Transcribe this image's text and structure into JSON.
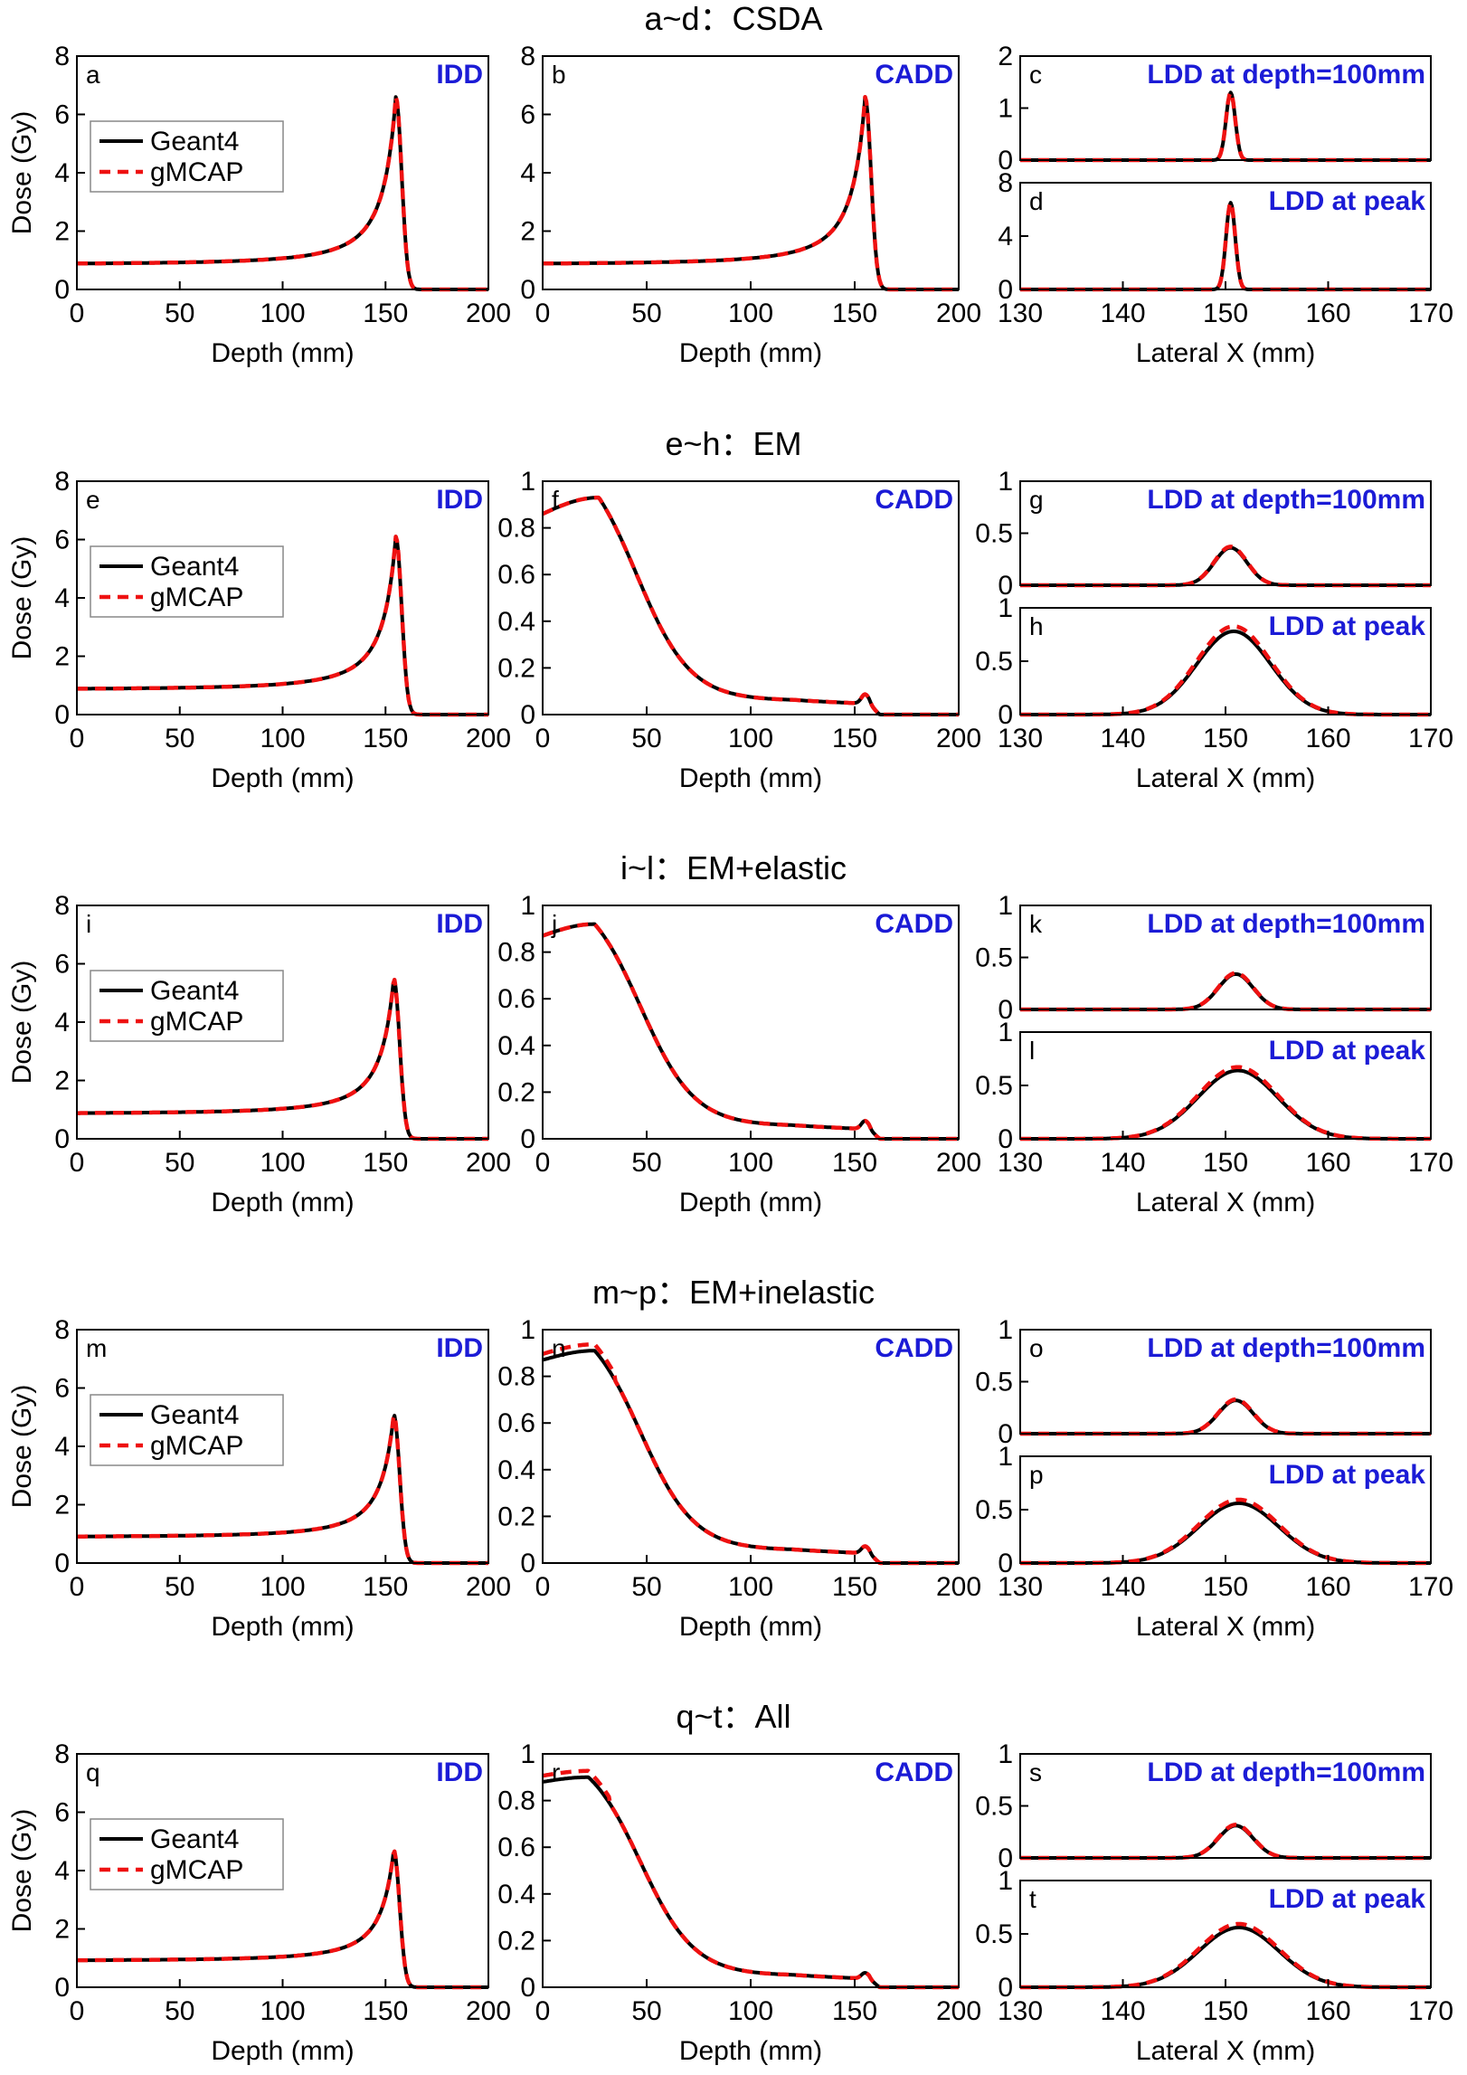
{
  "legend": {
    "geant4": "Geant4",
    "gmcap": "gMCAP"
  },
  "colors": {
    "geant4": "#000000",
    "gmcap": "#ee1111",
    "tag": "#1b1bd6"
  },
  "chart_data": [
    {
      "row_title": "a~d：CSDA",
      "panels": [
        {
          "letter": "a",
          "tag": "IDD",
          "type": "line",
          "kind": "idd",
          "xlabel": "Depth (mm)",
          "ylabel": "Dose (Gy)",
          "xlim": [
            0,
            200
          ],
          "ylim": [
            0,
            8
          ],
          "xticks": [
            0,
            50,
            100,
            150,
            200
          ],
          "yticks": [
            0,
            2,
            4,
            6,
            8
          ],
          "legend": true,
          "peak_depth_mm": 155,
          "peak_dose_gy": 6.6,
          "entrance_dose_gy": 0.85,
          "gmcap_scale": 1.0
        },
        {
          "letter": "b",
          "tag": "CADD",
          "type": "line",
          "kind": "idd",
          "xlabel": "Depth (mm)",
          "ylabel": "",
          "xlim": [
            0,
            200
          ],
          "ylim": [
            0,
            8
          ],
          "xticks": [
            0,
            50,
            100,
            150,
            200
          ],
          "yticks": [
            0,
            2,
            4,
            6,
            8
          ],
          "legend": false,
          "peak_depth_mm": 155,
          "peak_dose_gy": 6.6,
          "entrance_dose_gy": 0.85,
          "gmcap_scale": 1.0
        },
        {
          "letter": "c",
          "tag": "LDD at depth=100mm",
          "type": "line",
          "kind": "ldd",
          "xlabel": "",
          "ylabel": "",
          "xlim": [
            130,
            170
          ],
          "ylim": [
            0,
            2
          ],
          "xticks": [],
          "yticks": [
            0,
            1,
            2
          ],
          "center_mm": 150.5,
          "peak_dose_gy": 1.3,
          "sigma_mm": 0.45,
          "gmcap_scale": 1.0
        },
        {
          "letter": "d",
          "tag": "LDD at peak",
          "type": "line",
          "kind": "ldd",
          "xlabel": "Lateral X (mm)",
          "ylabel": "",
          "xlim": [
            130,
            170
          ],
          "ylim": [
            0,
            8
          ],
          "xticks": [
            130,
            140,
            150,
            160,
            170
          ],
          "yticks": [
            0,
            4,
            8
          ],
          "center_mm": 150.5,
          "peak_dose_gy": 6.5,
          "sigma_mm": 0.45,
          "gmcap_scale": 1.0
        }
      ]
    },
    {
      "row_title": "e~h：EM",
      "panels": [
        {
          "letter": "e",
          "tag": "IDD",
          "type": "line",
          "kind": "idd",
          "xlabel": "Depth (mm)",
          "ylabel": "Dose (Gy)",
          "xlim": [
            0,
            200
          ],
          "ylim": [
            0,
            8
          ],
          "xticks": [
            0,
            50,
            100,
            150,
            200
          ],
          "yticks": [
            0,
            2,
            4,
            6,
            8
          ],
          "legend": true,
          "peak_depth_mm": 155,
          "peak_dose_gy": 6.1,
          "entrance_dose_gy": 0.85,
          "gmcap_scale": 1.0
        },
        {
          "letter": "f",
          "tag": "CADD",
          "type": "line",
          "kind": "cadd",
          "xlabel": "Depth (mm)",
          "ylabel": "",
          "xlim": [
            0,
            200
          ],
          "ylim": [
            0,
            1
          ],
          "xticks": [
            0,
            50,
            100,
            150,
            200
          ],
          "yticks": [
            0,
            0.2,
            0.4,
            0.6,
            0.8,
            1
          ],
          "start_dose": 0.86,
          "max_dose": 0.93,
          "max_depth_mm": 27,
          "half_depth_mm": 45,
          "tail_dose": 0.06,
          "bump_dose": 0.1,
          "gmcap_scale": 1.0
        },
        {
          "letter": "g",
          "tag": "LDD at depth=100mm",
          "type": "line",
          "kind": "ldd",
          "xlabel": "",
          "ylabel": "",
          "xlim": [
            130,
            170
          ],
          "ylim": [
            0,
            1
          ],
          "xticks": [],
          "yticks": [
            0,
            0.5,
            1
          ],
          "center_mm": 150.5,
          "peak_dose_gy": 0.36,
          "sigma_mm": 1.6,
          "gmcap_scale": 1.03
        },
        {
          "letter": "h",
          "tag": "LDD at peak",
          "type": "line",
          "kind": "ldd",
          "xlabel": "Lateral X (mm)",
          "ylabel": "",
          "xlim": [
            130,
            170
          ],
          "ylim": [
            0,
            1
          ],
          "xticks": [
            130,
            140,
            150,
            160,
            170
          ],
          "yticks": [
            0,
            0.5,
            1
          ],
          "center_mm": 150.8,
          "peak_dose_gy": 0.78,
          "sigma_mm": 3.6,
          "gmcap_scale": 1.06
        }
      ]
    },
    {
      "row_title": "i~l：EM+elastic",
      "panels": [
        {
          "letter": "i",
          "tag": "IDD",
          "type": "line",
          "kind": "idd",
          "xlabel": "Depth (mm)",
          "ylabel": "Dose (Gy)",
          "xlim": [
            0,
            200
          ],
          "ylim": [
            0,
            8
          ],
          "xticks": [
            0,
            50,
            100,
            150,
            200
          ],
          "yticks": [
            0,
            2,
            4,
            6,
            8
          ],
          "legend": true,
          "peak_depth_mm": 154,
          "peak_dose_gy": 5.5,
          "entrance_dose_gy": 0.85,
          "gmcap_scale": 1.0
        },
        {
          "letter": "j",
          "tag": "CADD",
          "type": "line",
          "kind": "cadd",
          "xlabel": "Depth (mm)",
          "ylabel": "",
          "xlim": [
            0,
            200
          ],
          "ylim": [
            0,
            1
          ],
          "xticks": [
            0,
            50,
            100,
            150,
            200
          ],
          "yticks": [
            0,
            0.2,
            0.4,
            0.6,
            0.8,
            1
          ],
          "start_dose": 0.87,
          "max_dose": 0.92,
          "max_depth_mm": 25,
          "half_depth_mm": 47,
          "tail_dose": 0.055,
          "bump_dose": 0.09,
          "gmcap_scale": 1.0
        },
        {
          "letter": "k",
          "tag": "LDD at depth=100mm",
          "type": "line",
          "kind": "ldd",
          "xlabel": "",
          "ylabel": "",
          "xlim": [
            130,
            170
          ],
          "ylim": [
            0,
            1
          ],
          "xticks": [],
          "yticks": [
            0,
            0.5,
            1
          ],
          "center_mm": 151,
          "peak_dose_gy": 0.34,
          "sigma_mm": 1.7,
          "gmcap_scale": 1.03
        },
        {
          "letter": "l",
          "tag": "LDD at peak",
          "type": "line",
          "kind": "ldd",
          "xlabel": "Lateral X (mm)",
          "ylabel": "",
          "xlim": [
            130,
            170
          ],
          "ylim": [
            0,
            1
          ],
          "xticks": [
            130,
            140,
            150,
            160,
            170
          ],
          "yticks": [
            0,
            0.5,
            1
          ],
          "center_mm": 151.2,
          "peak_dose_gy": 0.64,
          "sigma_mm": 3.9,
          "gmcap_scale": 1.05
        }
      ]
    },
    {
      "row_title": "m~p：EM+inelastic",
      "panels": [
        {
          "letter": "m",
          "tag": "IDD",
          "type": "line",
          "kind": "idd",
          "xlabel": "Depth (mm)",
          "ylabel": "Dose (Gy)",
          "xlim": [
            0,
            200
          ],
          "ylim": [
            0,
            8
          ],
          "xticks": [
            0,
            50,
            100,
            150,
            200
          ],
          "yticks": [
            0,
            2,
            4,
            6,
            8
          ],
          "legend": true,
          "peak_depth_mm": 154,
          "peak_dose_gy": 5.1,
          "entrance_dose_gy": 0.88,
          "gmcap_scale": 1.0
        },
        {
          "letter": "n",
          "tag": "CADD",
          "type": "line",
          "kind": "cadd",
          "xlabel": "Depth (mm)",
          "ylabel": "",
          "xlim": [
            0,
            200
          ],
          "ylim": [
            0,
            1
          ],
          "xticks": [
            0,
            50,
            100,
            150,
            200
          ],
          "yticks": [
            0,
            0.2,
            0.4,
            0.6,
            0.8,
            1
          ],
          "start_dose": 0.87,
          "max_dose": 0.91,
          "max_depth_mm": 25,
          "half_depth_mm": 47,
          "tail_dose": 0.055,
          "bump_dose": 0.085,
          "gmcap_scale": 1.03
        },
        {
          "letter": "o",
          "tag": "LDD at depth=100mm",
          "type": "line",
          "kind": "ldd",
          "xlabel": "",
          "ylabel": "",
          "xlim": [
            130,
            170
          ],
          "ylim": [
            0,
            1
          ],
          "xticks": [],
          "yticks": [
            0,
            0.5,
            1
          ],
          "center_mm": 151,
          "peak_dose_gy": 0.32,
          "sigma_mm": 1.7,
          "gmcap_scale": 1.03
        },
        {
          "letter": "p",
          "tag": "LDD at peak",
          "type": "line",
          "kind": "ldd",
          "xlabel": "Lateral X (mm)",
          "ylabel": "",
          "xlim": [
            130,
            170
          ],
          "ylim": [
            0,
            1
          ],
          "xticks": [
            130,
            140,
            150,
            160,
            170
          ],
          "yticks": [
            0,
            0.5,
            1
          ],
          "center_mm": 151.3,
          "peak_dose_gy": 0.56,
          "sigma_mm": 3.9,
          "gmcap_scale": 1.06
        }
      ]
    },
    {
      "row_title": "q~t：All",
      "panels": [
        {
          "letter": "q",
          "tag": "IDD",
          "type": "line",
          "kind": "idd",
          "xlabel": "Depth (mm)",
          "ylabel": "Dose (Gy)",
          "xlim": [
            0,
            200
          ],
          "ylim": [
            0,
            8
          ],
          "xticks": [
            0,
            50,
            100,
            150,
            200
          ],
          "yticks": [
            0,
            2,
            4,
            6,
            8
          ],
          "legend": true,
          "peak_depth_mm": 154,
          "peak_dose_gy": 4.7,
          "entrance_dose_gy": 0.9,
          "gmcap_scale": 1.0
        },
        {
          "letter": "r",
          "tag": "CADD",
          "type": "line",
          "kind": "cadd",
          "xlabel": "Depth (mm)",
          "ylabel": "",
          "xlim": [
            0,
            200
          ],
          "ylim": [
            0,
            1
          ],
          "xticks": [
            0,
            50,
            100,
            150,
            200
          ],
          "yticks": [
            0,
            0.2,
            0.4,
            0.6,
            0.8,
            1
          ],
          "start_dose": 0.88,
          "max_dose": 0.9,
          "max_depth_mm": 22,
          "half_depth_mm": 47,
          "tail_dose": 0.05,
          "bump_dose": 0.075,
          "gmcap_scale": 1.03
        },
        {
          "letter": "s",
          "tag": "LDD at depth=100mm",
          "type": "line",
          "kind": "ldd",
          "xlabel": "",
          "ylabel": "",
          "xlim": [
            130,
            170
          ],
          "ylim": [
            0,
            1
          ],
          "xticks": [],
          "yticks": [
            0,
            0.5,
            1
          ],
          "center_mm": 151,
          "peak_dose_gy": 0.31,
          "sigma_mm": 1.7,
          "gmcap_scale": 1.03
        },
        {
          "letter": "t",
          "tag": "LDD at peak",
          "type": "line",
          "kind": "ldd",
          "xlabel": "Lateral X (mm)",
          "ylabel": "",
          "xlim": [
            130,
            170
          ],
          "ylim": [
            0,
            1
          ],
          "xticks": [
            130,
            140,
            150,
            160,
            170
          ],
          "yticks": [
            0,
            0.5,
            1
          ],
          "center_mm": 151.3,
          "peak_dose_gy": 0.56,
          "sigma_mm": 3.9,
          "gmcap_scale": 1.06
        }
      ]
    }
  ]
}
